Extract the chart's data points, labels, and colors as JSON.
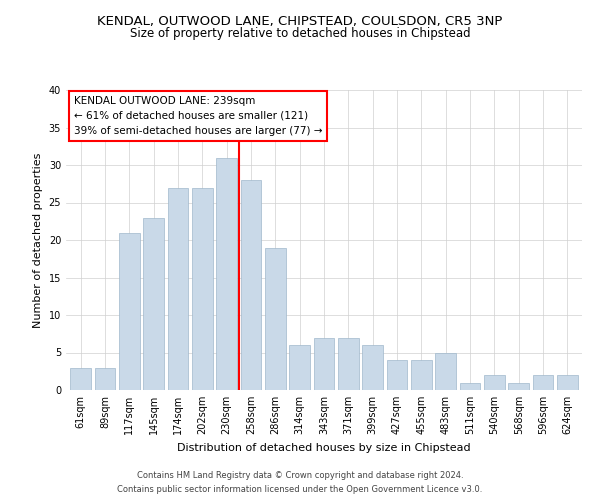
{
  "title": "KENDAL, OUTWOOD LANE, CHIPSTEAD, COULSDON, CR5 3NP",
  "subtitle": "Size of property relative to detached houses in Chipstead",
  "xlabel": "Distribution of detached houses by size in Chipstead",
  "ylabel": "Number of detached properties",
  "categories": [
    "61sqm",
    "89sqm",
    "117sqm",
    "145sqm",
    "174sqm",
    "202sqm",
    "230sqm",
    "258sqm",
    "286sqm",
    "314sqm",
    "343sqm",
    "371sqm",
    "399sqm",
    "427sqm",
    "455sqm",
    "483sqm",
    "511sqm",
    "540sqm",
    "568sqm",
    "596sqm",
    "624sqm"
  ],
  "values": [
    3,
    3,
    21,
    23,
    27,
    27,
    31,
    28,
    19,
    6,
    7,
    7,
    6,
    4,
    4,
    5,
    1,
    2,
    1,
    2,
    2
  ],
  "bar_color": "#c9d9e8",
  "bar_edgecolor": "#a0b8cc",
  "reference_line_label": "KENDAL OUTWOOD LANE: 239sqm",
  "annotation_line2": "← 61% of detached houses are smaller (121)",
  "annotation_line3": "39% of semi-detached houses are larger (77) →",
  "vline_color": "red",
  "box_edgecolor": "red",
  "footer1": "Contains HM Land Registry data © Crown copyright and database right 2024.",
  "footer2": "Contains public sector information licensed under the Open Government Licence v3.0.",
  "ylim": [
    0,
    40
  ],
  "yticks": [
    0,
    5,
    10,
    15,
    20,
    25,
    30,
    35,
    40
  ],
  "title_fontsize": 9.5,
  "subtitle_fontsize": 8.5,
  "tick_fontsize": 7,
  "label_fontsize": 8,
  "footer_fontsize": 6,
  "annotation_fontsize": 7.5
}
